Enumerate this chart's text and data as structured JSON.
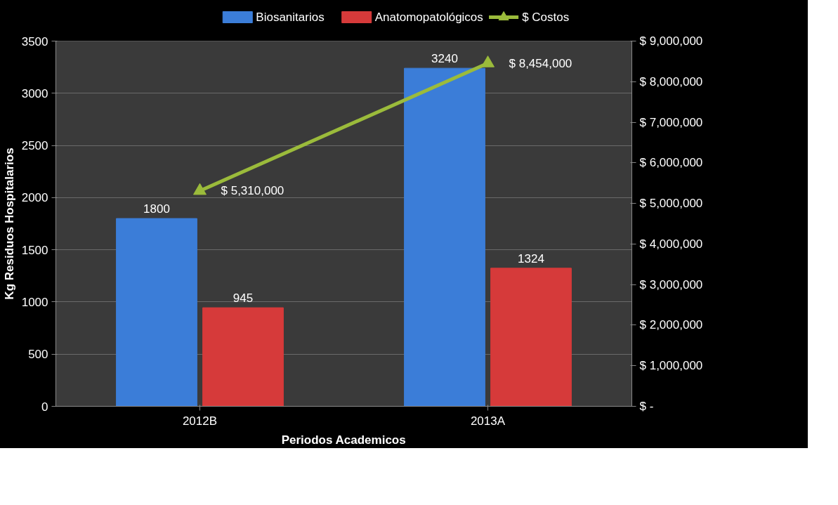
{
  "chart_data": {
    "type": "bar",
    "xlabel": "Periodos Academicos",
    "ylabel": "Kg Residuos Hospitalarios",
    "categories": [
      "2012B",
      "2013A"
    ],
    "series": [
      {
        "name": "Biosanitarios",
        "color": "#3b7dd8",
        "values": [
          1800,
          3240
        ],
        "value_labels": [
          "1800",
          "3240"
        ]
      },
      {
        "name": "Anatomopatológicos",
        "color": "#d63a3a",
        "values": [
          945,
          1324
        ],
        "value_labels": [
          "945",
          "1324"
        ]
      },
      {
        "name": "$ Costos",
        "type": "line",
        "axis": "y2",
        "color": "#9bbb3b",
        "marker": "triangle",
        "values": [
          5310000,
          8454000
        ],
        "value_labels": [
          "$ 5,310,000",
          "$ 8,454,000"
        ]
      }
    ],
    "ylim": [
      0,
      3500
    ],
    "yticks": [
      0,
      500,
      1000,
      1500,
      2000,
      2500,
      3000,
      3500
    ],
    "y2lim": [
      0,
      9000000
    ],
    "y2ticks": [
      {
        "value": 0,
        "label": "$ -"
      },
      {
        "value": 1000000,
        "label": "$ 1,000,000"
      },
      {
        "value": 2000000,
        "label": "$ 2,000,000"
      },
      {
        "value": 3000000,
        "label": "$ 3,000,000"
      },
      {
        "value": 4000000,
        "label": "$ 4,000,000"
      },
      {
        "value": 5000000,
        "label": "$ 5,000,000"
      },
      {
        "value": 6000000,
        "label": "$ 6,000,000"
      },
      {
        "value": 7000000,
        "label": "$ 7,000,000"
      },
      {
        "value": 8000000,
        "label": "$ 8,000,000"
      },
      {
        "value": 9000000,
        "label": "$ 9,000,000"
      }
    ],
    "grid": "y",
    "legend": "top"
  }
}
